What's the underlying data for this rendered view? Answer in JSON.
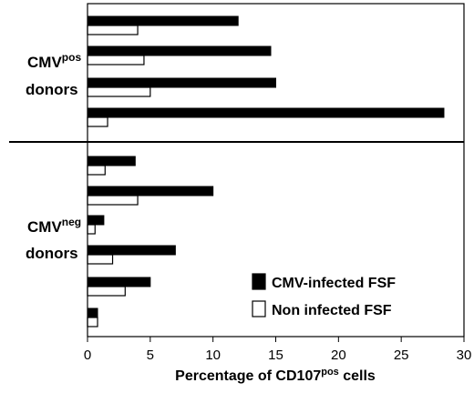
{
  "chart_data": {
    "type": "bar",
    "orientation": "horizontal",
    "xlabel": {
      "main": "Percentage of CD107",
      "sup": "pos",
      "tail": " cells"
    },
    "xlim": [
      0,
      30
    ],
    "xticks": [
      0,
      5,
      10,
      15,
      20,
      25,
      30
    ],
    "grid": false,
    "legend": {
      "placement": "bottom-right",
      "entries": [
        {
          "label": "CMV-infected FSF",
          "fill": "#000000"
        },
        {
          "label": "Non infected FSF",
          "fill": "#ffffff"
        }
      ]
    },
    "groups": [
      {
        "label_main": "CMV",
        "label_sup": "pos",
        "label_line2": "donors",
        "donors": [
          {
            "infected": 12.0,
            "non_infected": 4.0
          },
          {
            "infected": 14.6,
            "non_infected": 4.5
          },
          {
            "infected": 15.0,
            "non_infected": 5.0
          },
          {
            "infected": 28.4,
            "non_infected": 1.6
          }
        ]
      },
      {
        "label_main": "CMV",
        "label_sup": "neg",
        "label_line2": "donors",
        "donors": [
          {
            "infected": 3.8,
            "non_infected": 1.4
          },
          {
            "infected": 10.0,
            "non_infected": 4.0
          },
          {
            "infected": 1.3,
            "non_infected": 0.6
          },
          {
            "infected": 7.0,
            "non_infected": 2.0
          },
          {
            "infected": 5.0,
            "non_infected": 3.0
          },
          {
            "infected": 0.8,
            "non_infected": 0.8
          }
        ]
      }
    ]
  }
}
